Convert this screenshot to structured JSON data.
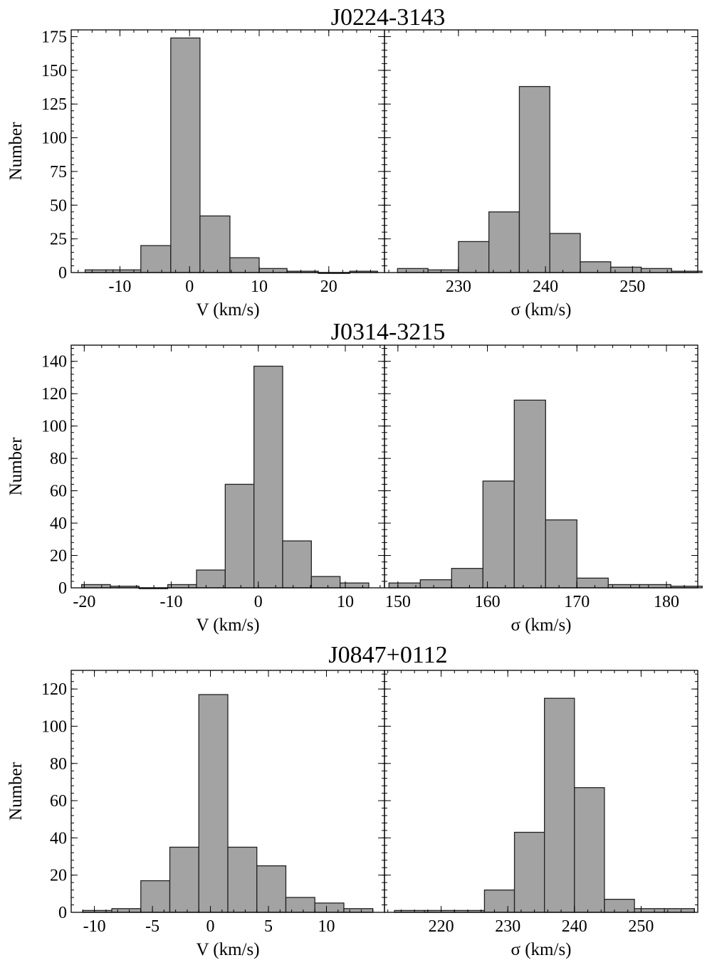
{
  "chart_data": [
    {
      "type": "bar",
      "title": "J0224-3143",
      "ylabel": "Number",
      "panels": [
        {
          "xlabel": "V (km/s)",
          "xlim": [
            -17,
            28
          ],
          "ylim": [
            0,
            180
          ],
          "xticks": [
            -10,
            0,
            10,
            20
          ],
          "xtick_labels": [
            "-10",
            "0",
            "10",
            "20"
          ],
          "yticks": [
            0,
            25,
            50,
            75,
            100,
            125,
            150,
            175
          ],
          "ytick_labels": [
            "0",
            "25",
            "50",
            "75",
            "100",
            "125",
            "150",
            "175"
          ],
          "bins": [
            {
              "x0": -15.0,
              "x1": -11.0,
              "value": 2
            },
            {
              "x0": -11.0,
              "x1": -7.0,
              "value": 2
            },
            {
              "x0": -7.0,
              "x1": -2.7,
              "value": 20
            },
            {
              "x0": -2.7,
              "x1": 1.5,
              "value": 174
            },
            {
              "x0": 1.5,
              "x1": 5.8,
              "value": 42
            },
            {
              "x0": 5.8,
              "x1": 10.0,
              "value": 11
            },
            {
              "x0": 10.0,
              "x1": 14.0,
              "value": 3
            },
            {
              "x0": 14.0,
              "x1": 18.5,
              "value": 1
            },
            {
              "x0": 18.5,
              "x1": 23.0,
              "value": 0
            },
            {
              "x0": 23.0,
              "x1": 27.0,
              "value": 1
            }
          ]
        },
        {
          "xlabel": "σ (km/s)",
          "xlim": [
            221.5,
            257.5
          ],
          "ylim": [
            0,
            180
          ],
          "xticks": [
            230,
            240,
            250
          ],
          "xtick_labels": [
            "230",
            "240",
            "250"
          ],
          "yticks": [
            0,
            25,
            50,
            75,
            100,
            125,
            150,
            175
          ],
          "bins": [
            {
              "x0": 223.0,
              "x1": 226.5,
              "value": 3
            },
            {
              "x0": 226.5,
              "x1": 230.0,
              "value": 2
            },
            {
              "x0": 230.0,
              "x1": 233.5,
              "value": 23
            },
            {
              "x0": 233.5,
              "x1": 237.0,
              "value": 45
            },
            {
              "x0": 237.0,
              "x1": 240.5,
              "value": 138
            },
            {
              "x0": 240.5,
              "x1": 244.0,
              "value": 29
            },
            {
              "x0": 244.0,
              "x1": 247.5,
              "value": 8
            },
            {
              "x0": 247.5,
              "x1": 251.0,
              "value": 4
            },
            {
              "x0": 251.0,
              "x1": 254.5,
              "value": 3
            },
            {
              "x0": 254.5,
              "x1": 258.0,
              "value": 1
            }
          ]
        }
      ]
    },
    {
      "type": "bar",
      "title": "J0314-3215",
      "ylabel": "Number",
      "panels": [
        {
          "xlabel": "V (km/s)",
          "xlim": [
            -21.5,
            14.5
          ],
          "ylim": [
            0,
            150
          ],
          "xticks": [
            -20,
            -10,
            0,
            10
          ],
          "xtick_labels": [
            "-20",
            "-10",
            "0",
            "10"
          ],
          "yticks": [
            0,
            20,
            40,
            60,
            80,
            100,
            120,
            140
          ],
          "ytick_labels": [
            "0",
            "20",
            "40",
            "60",
            "80",
            "100",
            "120",
            "140"
          ],
          "bins": [
            {
              "x0": -20.3,
              "x1": -17.0,
              "value": 2
            },
            {
              "x0": -17.0,
              "x1": -13.7,
              "value": 1
            },
            {
              "x0": -13.7,
              "x1": -10.4,
              "value": 0
            },
            {
              "x0": -10.4,
              "x1": -7.1,
              "value": 2
            },
            {
              "x0": -7.1,
              "x1": -3.8,
              "value": 11
            },
            {
              "x0": -3.8,
              "x1": -0.5,
              "value": 64
            },
            {
              "x0": -0.5,
              "x1": 2.8,
              "value": 137
            },
            {
              "x0": 2.8,
              "x1": 6.1,
              "value": 29
            },
            {
              "x0": 6.1,
              "x1": 9.4,
              "value": 7
            },
            {
              "x0": 9.4,
              "x1": 12.7,
              "value": 3
            }
          ]
        },
        {
          "xlabel": "σ (km/s)",
          "xlim": [
            148.5,
            183.5
          ],
          "ylim": [
            0,
            150
          ],
          "xticks": [
            150,
            160,
            170,
            180
          ],
          "xtick_labels": [
            "150",
            "160",
            "170",
            "180"
          ],
          "yticks": [
            0,
            20,
            40,
            60,
            80,
            100,
            120,
            140
          ],
          "bins": [
            {
              "x0": 149.0,
              "x1": 152.5,
              "value": 3
            },
            {
              "x0": 152.5,
              "x1": 156.0,
              "value": 5
            },
            {
              "x0": 156.0,
              "x1": 159.5,
              "value": 12
            },
            {
              "x0": 159.5,
              "x1": 163.0,
              "value": 66
            },
            {
              "x0": 163.0,
              "x1": 166.5,
              "value": 116
            },
            {
              "x0": 166.5,
              "x1": 170.0,
              "value": 42
            },
            {
              "x0": 170.0,
              "x1": 173.5,
              "value": 6
            },
            {
              "x0": 173.5,
              "x1": 177.0,
              "value": 2
            },
            {
              "x0": 177.0,
              "x1": 180.5,
              "value": 2
            },
            {
              "x0": 180.5,
              "x1": 184.0,
              "value": 1
            }
          ]
        }
      ]
    },
    {
      "type": "bar",
      "title": "J0847+0112",
      "ylabel": "Number",
      "panels": [
        {
          "xlabel": "V (km/s)",
          "xlim": [
            -12,
            15
          ],
          "ylim": [
            0,
            130
          ],
          "xticks": [
            -10,
            -5,
            0,
            5,
            10
          ],
          "xtick_labels": [
            "-10",
            "-5",
            "0",
            "5",
            "10"
          ],
          "yticks": [
            0,
            20,
            40,
            60,
            80,
            100,
            120
          ],
          "ytick_labels": [
            "0",
            "20",
            "40",
            "60",
            "80",
            "100",
            "120"
          ],
          "bins": [
            {
              "x0": -11.0,
              "x1": -8.5,
              "value": 1
            },
            {
              "x0": -8.5,
              "x1": -6.0,
              "value": 2
            },
            {
              "x0": -6.0,
              "x1": -3.5,
              "value": 17
            },
            {
              "x0": -3.5,
              "x1": -1.0,
              "value": 35
            },
            {
              "x0": -1.0,
              "x1": 1.5,
              "value": 117
            },
            {
              "x0": 1.5,
              "x1": 4.0,
              "value": 35
            },
            {
              "x0": 4.0,
              "x1": 6.5,
              "value": 25
            },
            {
              "x0": 6.5,
              "x1": 9.0,
              "value": 8
            },
            {
              "x0": 9.0,
              "x1": 11.5,
              "value": 5
            },
            {
              "x0": 11.5,
              "x1": 14.0,
              "value": 2
            }
          ]
        },
        {
          "xlabel": "σ (km/s)",
          "xlim": [
            211.5,
            258.5
          ],
          "ylim": [
            0,
            130
          ],
          "xticks": [
            220,
            230,
            240,
            250
          ],
          "xtick_labels": [
            "220",
            "230",
            "240",
            "250"
          ],
          "yticks": [
            0,
            20,
            40,
            60,
            80,
            100,
            120
          ],
          "bins": [
            {
              "x0": 213.0,
              "x1": 217.5,
              "value": 1
            },
            {
              "x0": 217.5,
              "x1": 222.0,
              "value": 1
            },
            {
              "x0": 222.0,
              "x1": 226.5,
              "value": 1
            },
            {
              "x0": 226.5,
              "x1": 231.0,
              "value": 12
            },
            {
              "x0": 231.0,
              "x1": 235.5,
              "value": 43
            },
            {
              "x0": 235.5,
              "x1": 240.0,
              "value": 115
            },
            {
              "x0": 240.0,
              "x1": 244.5,
              "value": 67
            },
            {
              "x0": 244.5,
              "x1": 249.0,
              "value": 7
            },
            {
              "x0": 249.0,
              "x1": 253.5,
              "value": 2
            },
            {
              "x0": 253.5,
              "x1": 258.0,
              "value": 2
            }
          ]
        }
      ]
    }
  ]
}
